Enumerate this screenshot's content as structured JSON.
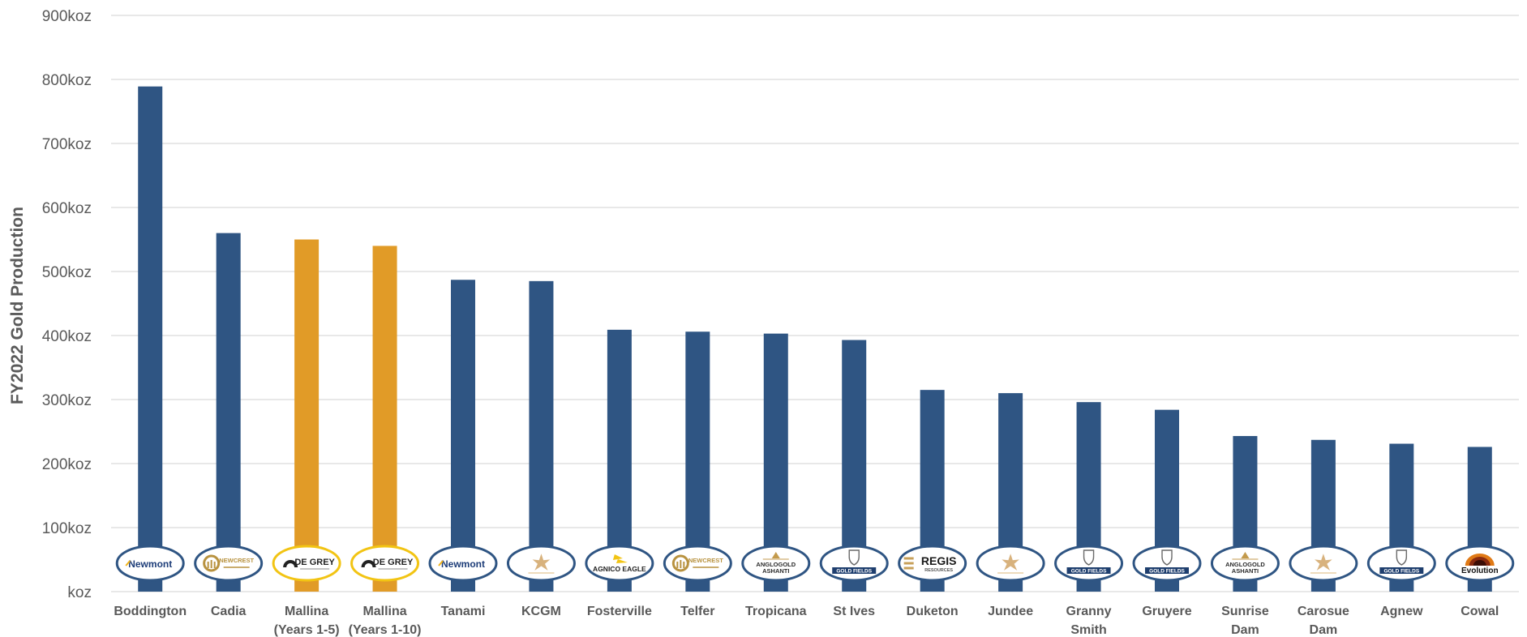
{
  "chart_data": {
    "type": "bar",
    "ylabel": "FY2022 Gold Production",
    "xlabel": "",
    "ylim": [
      0,
      900
    ],
    "y_ticks": [
      {
        "value": 0,
        "label": "koz"
      },
      {
        "value": 100,
        "label": "100koz"
      },
      {
        "value": 200,
        "label": "200koz"
      },
      {
        "value": 300,
        "label": "300koz"
      },
      {
        "value": 400,
        "label": "400koz"
      },
      {
        "value": 500,
        "label": "500koz"
      },
      {
        "value": 600,
        "label": "600koz"
      },
      {
        "value": 700,
        "label": "700koz"
      },
      {
        "value": 800,
        "label": "800koz"
      },
      {
        "value": 900,
        "label": "900koz"
      }
    ],
    "grid": true,
    "categories": [
      {
        "label": [
          "Boddington"
        ],
        "value": 789,
        "highlight": false,
        "logo": "newmont-logo",
        "logo_text": "Newmont"
      },
      {
        "label": [
          "Cadia"
        ],
        "value": 560,
        "highlight": false,
        "logo": "newcrest-logo",
        "logo_text": "NEWCREST"
      },
      {
        "label": [
          "Mallina",
          "(Years 1-5)"
        ],
        "value": 550,
        "highlight": true,
        "logo": "de-grey-logo",
        "logo_text": "DE GREY"
      },
      {
        "label": [
          "Mallina",
          "(Years 1-10)"
        ],
        "value": 540,
        "highlight": true,
        "logo": "de-grey-logo",
        "logo_text": "DE GREY"
      },
      {
        "label": [
          "Tanami"
        ],
        "value": 487,
        "highlight": false,
        "logo": "newmont-logo",
        "logo_text": "Newmont"
      },
      {
        "label": [
          "KCGM"
        ],
        "value": 485,
        "highlight": false,
        "logo": "northern-star-logo",
        "logo_text": ""
      },
      {
        "label": [
          "Fosterville"
        ],
        "value": 409,
        "highlight": false,
        "logo": "agnico-eagle-logo",
        "logo_text": "AGNICO EAGLE"
      },
      {
        "label": [
          "Telfer"
        ],
        "value": 406,
        "highlight": false,
        "logo": "newcrest-logo",
        "logo_text": "NEWCREST"
      },
      {
        "label": [
          "Tropicana"
        ],
        "value": 403,
        "highlight": false,
        "logo": "anglogold-ashanti-logo",
        "logo_text": "ANGLOGOLD ASHANTI"
      },
      {
        "label": [
          "St Ives"
        ],
        "value": 393,
        "highlight": false,
        "logo": "gold-fields-logo",
        "logo_text": "GOLD FIELDS"
      },
      {
        "label": [
          "Duketon"
        ],
        "value": 315,
        "highlight": false,
        "logo": "regis-logo",
        "logo_text": "REGIS"
      },
      {
        "label": [
          "Jundee"
        ],
        "value": 310,
        "highlight": false,
        "logo": "northern-star-logo",
        "logo_text": ""
      },
      {
        "label": [
          "Granny",
          "Smith"
        ],
        "value": 296,
        "highlight": false,
        "logo": "gold-fields-logo",
        "logo_text": "GOLD FIELDS"
      },
      {
        "label": [
          "Gruyere"
        ],
        "value": 284,
        "highlight": false,
        "logo": "gold-fields-logo",
        "logo_text": "GOLD FIELDS"
      },
      {
        "label": [
          "Sunrise",
          "Dam"
        ],
        "value": 243,
        "highlight": false,
        "logo": "anglogold-ashanti-logo",
        "logo_text": "ANGLOGOLD ASHANTI"
      },
      {
        "label": [
          "Carosue",
          "Dam"
        ],
        "value": 237,
        "highlight": false,
        "logo": "northern-star-logo",
        "logo_text": ""
      },
      {
        "label": [
          "Agnew"
        ],
        "value": 231,
        "highlight": false,
        "logo": "gold-fields-logo",
        "logo_text": "GOLD FIELDS"
      },
      {
        "label": [
          "Cowal"
        ],
        "value": 226,
        "highlight": false,
        "logo": "evolution-logo",
        "logo_text": "Evolution"
      }
    ],
    "colors": {
      "bar": "#2f5583",
      "highlight_bar": "#e19b27",
      "grid": "#d9d9d9",
      "logo_border": "#2f5583",
      "highlight_logo_border": "#f2c413"
    }
  }
}
